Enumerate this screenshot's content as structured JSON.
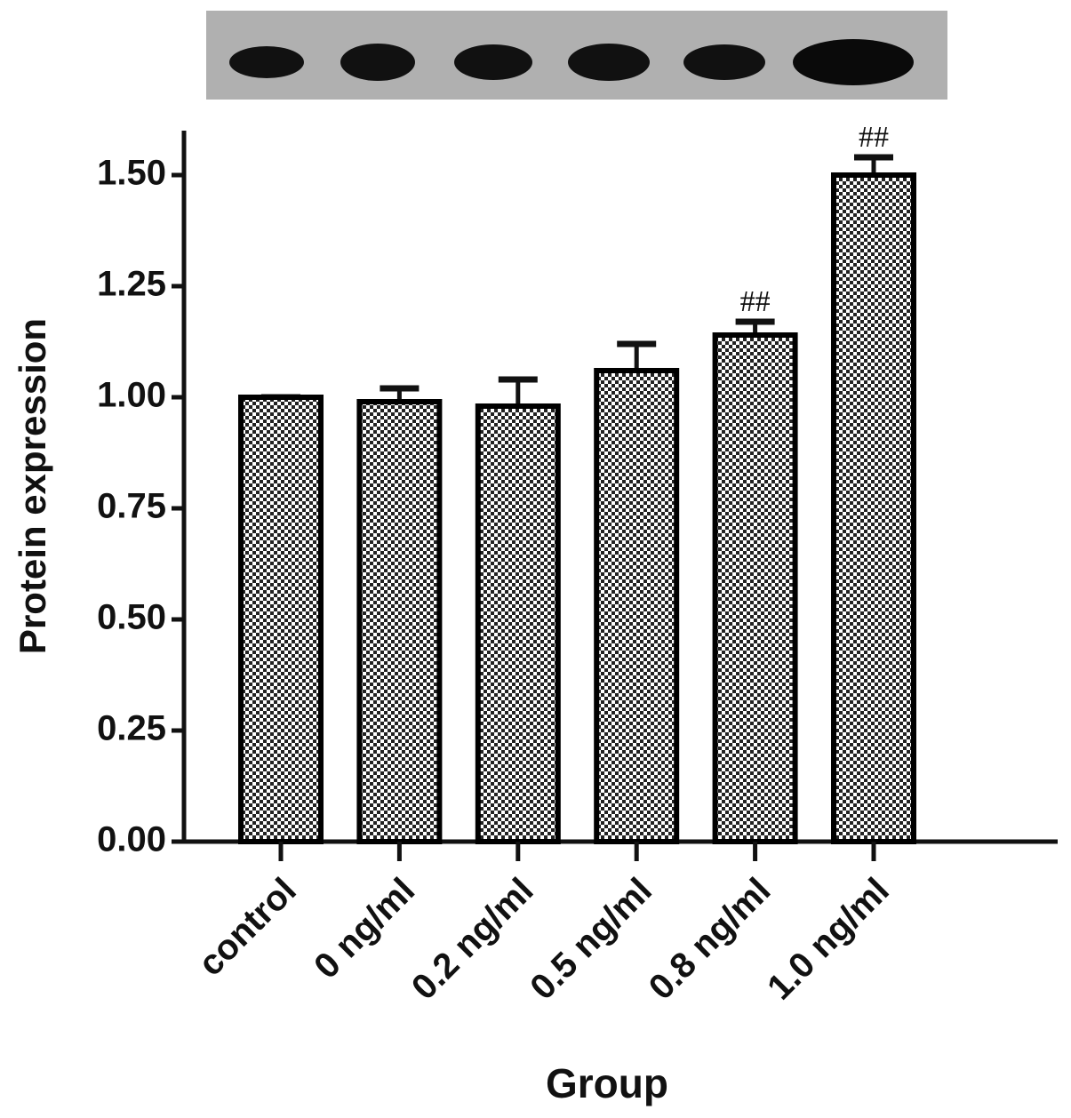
{
  "chart_data": {
    "type": "bar",
    "y_label": "Protein expression",
    "x_label": "Group",
    "categories": [
      "control",
      "0 ng/ml",
      "0.2 ng/ml",
      "0.5 ng/ml",
      "0.8 ng/ml",
      "1.0 ng/ml"
    ],
    "values": [
      1.0,
      0.99,
      0.98,
      1.06,
      1.14,
      1.5
    ],
    "errors": [
      0,
      0.03,
      0.06,
      0.06,
      0.03,
      0.04
    ],
    "annotations": [
      null,
      null,
      null,
      null,
      "##",
      "##"
    ],
    "color": "#000000",
    "ylim": [
      0,
      1.6
    ],
    "yticks": [
      {
        "value": 0,
        "label": "0.00"
      },
      {
        "value": 0.25,
        "label": "0.25"
      },
      {
        "value": 0.5,
        "label": "0.50"
      },
      {
        "value": 0.75,
        "label": "0.75"
      },
      {
        "value": 1.0,
        "label": "1.00"
      },
      {
        "value": 1.25,
        "label": "1.25"
      },
      {
        "value": 1.5,
        "label": "1.50"
      }
    ],
    "grid": false
  }
}
